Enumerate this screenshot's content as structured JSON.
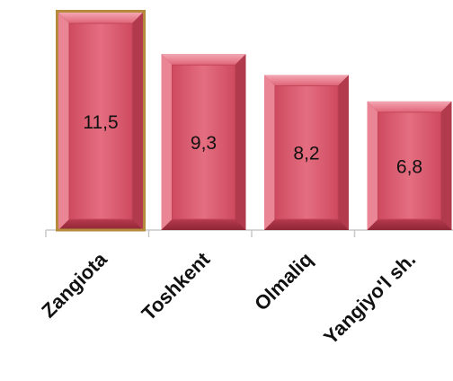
{
  "chart_data": {
    "type": "bar",
    "categories": [
      "Zangiota",
      "Toshkent",
      "Olmaliq",
      "Yangiyo'l sh."
    ],
    "values": [
      11.5,
      9.3,
      8.2,
      6.8
    ],
    "value_labels": [
      "11,5",
      "9,3",
      "8,2",
      "6,8"
    ],
    "ylim": [
      0,
      11.5
    ],
    "grid": false,
    "legend": "none",
    "colors": {
      "bar_fill": "#d8566a",
      "bar_fill_light": "#ea8596",
      "bar_edge_dark": "#9c2f40",
      "first_bar_border": "#b58a3c",
      "axis": "#c8c8c8"
    }
  }
}
